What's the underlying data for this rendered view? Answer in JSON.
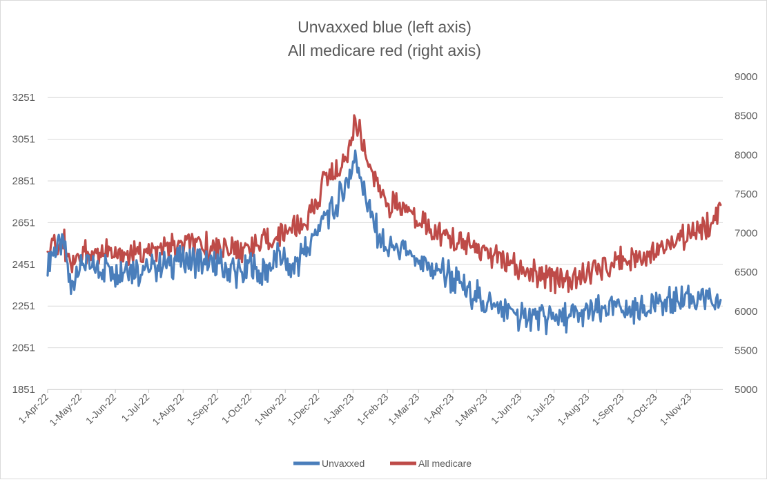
{
  "chart_data": {
    "type": "line",
    "title_lines": [
      "Unvaxxed blue (left axis)",
      "All medicare red (right axis)"
    ],
    "xlabel": "",
    "ylabel_left": "",
    "ylabel_right": "",
    "x_range": [
      "2022-04-01",
      "2023-11-30"
    ],
    "x_ticks": [
      "1-Apr-22",
      "1-May-22",
      "1-Jun-22",
      "1-Jul-22",
      "1-Aug-22",
      "1-Sep-22",
      "1-Oct-22",
      "1-Nov-22",
      "1-Dec-22",
      "1-Jan-23",
      "1-Feb-23",
      "1-Mar-23",
      "1-Apr-23",
      "1-May-23",
      "1-Jun-23",
      "1-Jul-23",
      "1-Aug-23",
      "1-Sep-23",
      "1-Oct-23",
      "1-Nov-23"
    ],
    "y_left": {
      "range": [
        1851,
        3351
      ],
      "ticks": [
        1851,
        2051,
        2251,
        2451,
        2651,
        2851,
        3051,
        3251
      ]
    },
    "y_right": {
      "range": [
        5000,
        9000
      ],
      "ticks": [
        5000,
        5500,
        6000,
        6500,
        7000,
        7500,
        8000,
        8500,
        9000
      ]
    },
    "grid": "horizontal",
    "legend_position": "bottom",
    "series": [
      {
        "name": "Unvaxxed",
        "axis": "left",
        "color": "#4a7ebb",
        "points": [
          [
            "2022-04-01",
            2470
          ],
          [
            "2022-04-08",
            2520
          ],
          [
            "2022-04-15",
            2560
          ],
          [
            "2022-04-22",
            2330
          ],
          [
            "2022-04-29",
            2450
          ],
          [
            "2022-05-06",
            2460
          ],
          [
            "2022-05-13",
            2420
          ],
          [
            "2022-05-20",
            2440
          ],
          [
            "2022-05-27",
            2430
          ],
          [
            "2022-06-03",
            2420
          ],
          [
            "2022-06-10",
            2440
          ],
          [
            "2022-06-17",
            2430
          ],
          [
            "2022-06-24",
            2420
          ],
          [
            "2022-07-01",
            2430
          ],
          [
            "2022-07-08",
            2440
          ],
          [
            "2022-07-15",
            2450
          ],
          [
            "2022-07-22",
            2460
          ],
          [
            "2022-07-29",
            2470
          ],
          [
            "2022-08-05",
            2460
          ],
          [
            "2022-08-12",
            2470
          ],
          [
            "2022-08-19",
            2450
          ],
          [
            "2022-08-26",
            2440
          ],
          [
            "2022-09-02",
            2450
          ],
          [
            "2022-09-09",
            2430
          ],
          [
            "2022-09-16",
            2420
          ],
          [
            "2022-09-23",
            2410
          ],
          [
            "2022-09-30",
            2440
          ],
          [
            "2022-10-07",
            2430
          ],
          [
            "2022-10-14",
            2420
          ],
          [
            "2022-10-21",
            2470
          ],
          [
            "2022-10-28",
            2500
          ],
          [
            "2022-11-04",
            2430
          ],
          [
            "2022-11-11",
            2450
          ],
          [
            "2022-11-18",
            2520
          ],
          [
            "2022-11-25",
            2560
          ],
          [
            "2022-12-02",
            2640
          ],
          [
            "2022-12-09",
            2700
          ],
          [
            "2022-12-16",
            2740
          ],
          [
            "2022-12-23",
            2780
          ],
          [
            "2022-12-30",
            2890
          ],
          [
            "2023-01-03",
            2950
          ],
          [
            "2023-01-10",
            2830
          ],
          [
            "2023-01-17",
            2700
          ],
          [
            "2023-01-24",
            2580
          ],
          [
            "2023-01-31",
            2530
          ],
          [
            "2023-02-07",
            2520
          ],
          [
            "2023-02-14",
            2510
          ],
          [
            "2023-02-21",
            2500
          ],
          [
            "2023-02-28",
            2460
          ],
          [
            "2023-03-07",
            2430
          ],
          [
            "2023-03-14",
            2420
          ],
          [
            "2023-03-21",
            2410
          ],
          [
            "2023-03-28",
            2400
          ],
          [
            "2023-04-04",
            2370
          ],
          [
            "2023-04-11",
            2340
          ],
          [
            "2023-04-18",
            2310
          ],
          [
            "2023-04-25",
            2290
          ],
          [
            "2023-05-02",
            2260
          ],
          [
            "2023-05-09",
            2240
          ],
          [
            "2023-05-16",
            2230
          ],
          [
            "2023-05-23",
            2210
          ],
          [
            "2023-05-30",
            2200
          ],
          [
            "2023-06-06",
            2190
          ],
          [
            "2023-06-13",
            2210
          ],
          [
            "2023-06-20",
            2200
          ],
          [
            "2023-06-27",
            2190
          ],
          [
            "2023-07-04",
            2200
          ],
          [
            "2023-07-11",
            2190
          ],
          [
            "2023-07-18",
            2200
          ],
          [
            "2023-07-25",
            2210
          ],
          [
            "2023-08-01",
            2200
          ],
          [
            "2023-08-08",
            2220
          ],
          [
            "2023-08-15",
            2230
          ],
          [
            "2023-08-22",
            2220
          ],
          [
            "2023-08-29",
            2240
          ],
          [
            "2023-09-05",
            2230
          ],
          [
            "2023-09-12",
            2250
          ],
          [
            "2023-09-19",
            2240
          ],
          [
            "2023-09-26",
            2260
          ],
          [
            "2023-10-03",
            2270
          ],
          [
            "2023-10-10",
            2260
          ],
          [
            "2023-10-17",
            2280
          ],
          [
            "2023-10-24",
            2290
          ],
          [
            "2023-10-31",
            2300
          ],
          [
            "2023-11-07",
            2290
          ],
          [
            "2023-11-14",
            2280
          ],
          [
            "2023-11-21",
            2260
          ],
          [
            "2023-11-28",
            2280
          ]
        ]
      },
      {
        "name": "All medicare",
        "axis": "right",
        "color": "#be4b48",
        "points": [
          [
            "2022-04-01",
            6880
          ],
          [
            "2022-04-08",
            6830
          ],
          [
            "2022-04-15",
            6900
          ],
          [
            "2022-04-22",
            6580
          ],
          [
            "2022-04-29",
            6750
          ],
          [
            "2022-05-06",
            6760
          ],
          [
            "2022-05-13",
            6740
          ],
          [
            "2022-05-20",
            6770
          ],
          [
            "2022-05-27",
            6730
          ],
          [
            "2022-06-03",
            6700
          ],
          [
            "2022-06-10",
            6740
          ],
          [
            "2022-06-17",
            6720
          ],
          [
            "2022-06-24",
            6740
          ],
          [
            "2022-07-01",
            6750
          ],
          [
            "2022-07-08",
            6760
          ],
          [
            "2022-07-15",
            6800
          ],
          [
            "2022-07-22",
            6830
          ],
          [
            "2022-07-29",
            6860
          ],
          [
            "2022-08-05",
            6850
          ],
          [
            "2022-08-12",
            6830
          ],
          [
            "2022-08-19",
            6820
          ],
          [
            "2022-08-26",
            6830
          ],
          [
            "2022-09-02",
            6810
          ],
          [
            "2022-09-09",
            6790
          ],
          [
            "2022-09-16",
            6800
          ],
          [
            "2022-09-23",
            6810
          ],
          [
            "2022-09-30",
            6840
          ],
          [
            "2022-10-07",
            6850
          ],
          [
            "2022-10-14",
            6870
          ],
          [
            "2022-10-21",
            6920
          ],
          [
            "2022-10-28",
            6980
          ],
          [
            "2022-11-04",
            7040
          ],
          [
            "2022-11-11",
            7080
          ],
          [
            "2022-11-18",
            7120
          ],
          [
            "2022-11-25",
            7260
          ],
          [
            "2022-12-02",
            7500
          ],
          [
            "2022-12-09",
            7800
          ],
          [
            "2022-12-16",
            7760
          ],
          [
            "2022-12-23",
            7880
          ],
          [
            "2022-12-30",
            8150
          ],
          [
            "2023-01-03",
            8440
          ],
          [
            "2023-01-10",
            8180
          ],
          [
            "2023-01-17",
            7820
          ],
          [
            "2023-01-24",
            7560
          ],
          [
            "2023-01-31",
            7420
          ],
          [
            "2023-02-07",
            7360
          ],
          [
            "2023-02-14",
            7340
          ],
          [
            "2023-02-21",
            7280
          ],
          [
            "2023-02-28",
            7180
          ],
          [
            "2023-03-07",
            7120
          ],
          [
            "2023-03-14",
            7050
          ],
          [
            "2023-03-21",
            6990
          ],
          [
            "2023-03-28",
            6940
          ],
          [
            "2023-04-04",
            6900
          ],
          [
            "2023-04-11",
            6850
          ],
          [
            "2023-04-18",
            6820
          ],
          [
            "2023-04-25",
            6790
          ],
          [
            "2023-05-02",
            6760
          ],
          [
            "2023-05-09",
            6720
          ],
          [
            "2023-05-16",
            6660
          ],
          [
            "2023-05-23",
            6580
          ],
          [
            "2023-05-30",
            6520
          ],
          [
            "2023-06-06",
            6500
          ],
          [
            "2023-06-13",
            6480
          ],
          [
            "2023-06-20",
            6460
          ],
          [
            "2023-06-27",
            6440
          ],
          [
            "2023-07-04",
            6430
          ],
          [
            "2023-07-11",
            6420
          ],
          [
            "2023-07-18",
            6410
          ],
          [
            "2023-07-25",
            6440
          ],
          [
            "2023-08-01",
            6470
          ],
          [
            "2023-08-08",
            6520
          ],
          [
            "2023-08-15",
            6560
          ],
          [
            "2023-08-22",
            6620
          ],
          [
            "2023-08-29",
            6640
          ],
          [
            "2023-09-05",
            6660
          ],
          [
            "2023-09-12",
            6700
          ],
          [
            "2023-09-19",
            6720
          ],
          [
            "2023-09-26",
            6760
          ],
          [
            "2023-10-03",
            6800
          ],
          [
            "2023-10-10",
            6850
          ],
          [
            "2023-10-17",
            6900
          ],
          [
            "2023-10-24",
            6940
          ],
          [
            "2023-10-31",
            6980
          ],
          [
            "2023-11-07",
            7020
          ],
          [
            "2023-11-14",
            7060
          ],
          [
            "2023-11-21",
            7120
          ],
          [
            "2023-11-28",
            7360
          ]
        ]
      }
    ]
  }
}
